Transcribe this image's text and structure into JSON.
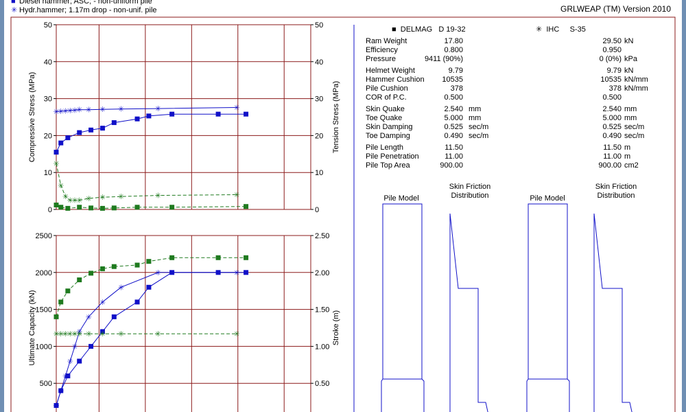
{
  "legend": [
    {
      "icon": "filled-square-icon",
      "text": "Diesel hammer; ASC; - non-uniform pile"
    },
    {
      "icon": "asterisk-icon",
      "text": "Hydr.hammer; 1.17m drop - non-unif. pile"
    }
  ],
  "version": "GRLWEAP (TM) Version 2010",
  "hammers": [
    {
      "icon": "filled-square-icon",
      "model": "DELMAG",
      "name": "D 19-32"
    },
    {
      "icon": "asterisk-icon",
      "model": "IHC",
      "name": "S-35"
    }
  ],
  "params": [
    {
      "label": "Ram Weight",
      "v1": "17.80",
      "u1": "",
      "v2": "29.50",
      "u2": "kN"
    },
    {
      "label": "Efficiency",
      "v1": "0.800",
      "u1": "",
      "v2": "0.950",
      "u2": ""
    },
    {
      "label": "Pressure",
      "v1": "9411 (90%)",
      "u1": "",
      "v2": "0 (0%)",
      "u2": "kPa"
    },
    {
      "label": "Helmet Weight",
      "v1": "9.79",
      "u1": "",
      "v2": "9.79",
      "u2": "kN"
    },
    {
      "label": "Hammer Cushion",
      "v1": "10535",
      "u1": "",
      "v2": "10535",
      "u2": "kN/mm"
    },
    {
      "label": "Pile Cushion",
      "v1": "378",
      "u1": "",
      "v2": "378",
      "u2": "kN/mm"
    },
    {
      "label": "COR of P.C.",
      "v1": "0.500",
      "u1": "",
      "v2": "0.500",
      "u2": ""
    },
    {
      "label": "Skin Quake",
      "v1": "2.540",
      "u1": "mm",
      "v2": "2.540",
      "u2": "mm"
    },
    {
      "label": "Toe Quake",
      "v1": "5.000",
      "u1": "mm",
      "v2": "5.000",
      "u2": "mm"
    },
    {
      "label": "Skin Damping",
      "v1": "0.525",
      "u1": "sec/m",
      "v2": "0.525",
      "u2": "sec/m"
    },
    {
      "label": "Toe Damping",
      "v1": "0.490",
      "u1": "sec/m",
      "v2": "0.490",
      "u2": "sec/m"
    },
    {
      "label": "Pile Length",
      "v1": "11.50",
      "u1": "",
      "v2": "11.50",
      "u2": "m"
    },
    {
      "label": "Pile Penetration",
      "v1": "11.00",
      "u1": "",
      "v2": "11.00",
      "u2": "m"
    },
    {
      "label": "Pile Top Area",
      "v1": "900.00",
      "u1": "",
      "v2": "900.00",
      "u2": "cm2"
    }
  ],
  "models": [
    {
      "pile": "Pile Model",
      "friction": "Skin Friction Distribution"
    },
    {
      "pile": "Pile Model",
      "friction": "Skin Friction Distribution"
    }
  ],
  "colors": {
    "frame": "#8b1a1a",
    "grid": "#8b1a1a",
    "blue": "#1010c8",
    "green": "#1f7a1f",
    "window": "#6f8fb3"
  },
  "chart_data": [
    {
      "type": "line",
      "title": "",
      "ylabel": "Compressive Stress (MPa)",
      "y2label": "Tension Stress (MPa)",
      "xlim": [
        0,
        11
      ],
      "ylim": [
        0,
        50
      ],
      "y2lim": [
        0,
        50
      ],
      "yticks": [
        0,
        10,
        20,
        30,
        40,
        50
      ],
      "y2ticks": [
        0,
        10,
        20,
        30,
        40,
        50
      ],
      "xgrid": [
        0,
        1.85,
        3.85,
        5.85,
        7.85,
        9.85
      ],
      "grid": true,
      "series": [
        {
          "axis": "left",
          "color": "blue",
          "marker": "square",
          "dash": false,
          "x": [
            0,
            0.2,
            0.5,
            1.0,
            1.5,
            2.0,
            2.5,
            3.5,
            4.0,
            5.0,
            7.0,
            8.2
          ],
          "y": [
            15.5,
            18.0,
            19.4,
            20.8,
            21.5,
            22.0,
            23.5,
            24.5,
            25.3,
            25.8,
            25.8,
            25.8
          ]
        },
        {
          "axis": "left",
          "color": "blue",
          "marker": "asterisk",
          "dash": false,
          "x": [
            0,
            0.2,
            0.4,
            0.6,
            0.8,
            1.0,
            1.4,
            2.0,
            2.8,
            4.4,
            7.8
          ],
          "y": [
            26.5,
            26.6,
            26.7,
            26.8,
            26.9,
            27.0,
            27.0,
            27.1,
            27.2,
            27.3,
            27.6
          ]
        },
        {
          "axis": "right",
          "color": "green",
          "marker": "square",
          "dash": true,
          "x": [
            0,
            0.2,
            0.5,
            1.0,
            1.5,
            2.0,
            2.5,
            3.5,
            5.0,
            8.2
          ],
          "y": [
            1.2,
            0.6,
            0.3,
            0.6,
            0.4,
            0.3,
            0.4,
            0.6,
            0.6,
            0.8
          ]
        },
        {
          "axis": "right",
          "color": "green",
          "marker": "asterisk",
          "dash": true,
          "x": [
            0,
            0.2,
            0.4,
            0.6,
            0.8,
            1.0,
            1.4,
            2.0,
            2.8,
            4.4,
            7.8
          ],
          "y": [
            12.5,
            6.5,
            3.5,
            2.5,
            2.5,
            2.5,
            3.0,
            3.3,
            3.5,
            3.8,
            4.0
          ]
        }
      ]
    },
    {
      "type": "line",
      "title": "",
      "ylabel": "Ultimate Capacity (kN)",
      "y2label": "Stroke (m)",
      "xlim": [
        0,
        11
      ],
      "ylim": [
        0,
        2500
      ],
      "y2lim": [
        0,
        2.5
      ],
      "yticks": [
        500,
        1000,
        1500,
        2000,
        2500
      ],
      "y2ticks": [
        0.5,
        1.0,
        1.5,
        2.0,
        2.5
      ],
      "y2tick_labels": [
        "0.50",
        "1.00",
        "1.50",
        "2.00",
        "2.50"
      ],
      "xgrid": [
        0,
        1.85,
        3.85,
        5.85,
        7.85,
        9.85
      ],
      "grid": true,
      "series": [
        {
          "axis": "left",
          "color": "blue",
          "marker": "square",
          "dash": false,
          "x": [
            0,
            0.2,
            0.5,
            1.0,
            1.5,
            2.0,
            2.5,
            3.5,
            4.0,
            5.0,
            7.0,
            8.2
          ],
          "y": [
            200,
            400,
            600,
            800,
            1000,
            1200,
            1400,
            1600,
            1800,
            2000,
            2000,
            2000
          ]
        },
        {
          "axis": "left",
          "color": "blue",
          "marker": "asterisk",
          "dash": false,
          "x": [
            0,
            0.2,
            0.4,
            0.6,
            0.8,
            1.0,
            1.4,
            2.0,
            2.8,
            4.4,
            7.8
          ],
          "y": [
            200,
            400,
            600,
            800,
            1000,
            1200,
            1400,
            1600,
            1800,
            2000,
            2000
          ]
        },
        {
          "axis": "right",
          "color": "green",
          "marker": "square",
          "dash": true,
          "x": [
            0,
            0.2,
            0.5,
            1.0,
            1.5,
            2.0,
            2.5,
            3.5,
            4.0,
            5.0,
            7.0,
            8.2
          ],
          "y": [
            1.4,
            1.6,
            1.75,
            1.9,
            1.99,
            2.05,
            2.08,
            2.1,
            2.15,
            2.2,
            2.2,
            2.2
          ]
        },
        {
          "axis": "right",
          "color": "green",
          "marker": "asterisk",
          "dash": true,
          "x": [
            0,
            0.2,
            0.4,
            0.6,
            0.8,
            1.0,
            1.4,
            2.0,
            2.8,
            4.4,
            7.8
          ],
          "y": [
            1.17,
            1.17,
            1.17,
            1.17,
            1.17,
            1.17,
            1.17,
            1.17,
            1.17,
            1.17,
            1.17
          ]
        }
      ]
    }
  ]
}
